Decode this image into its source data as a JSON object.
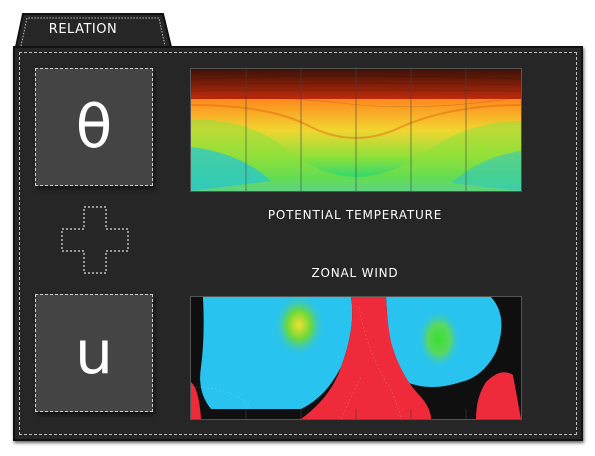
{
  "tab": {
    "label": "RELATION"
  },
  "symbols": {
    "top": "θ",
    "bottom": "u"
  },
  "charts": {
    "top_label": "POTENTIAL TEMPERATURE",
    "bottom_label": "ZONAL WIND"
  },
  "colors": {
    "panel_bg": "#262626",
    "symbol_bg": "#444444",
    "wind_cyan": "#29c3ef",
    "wind_red": "#ee2a3b"
  }
}
